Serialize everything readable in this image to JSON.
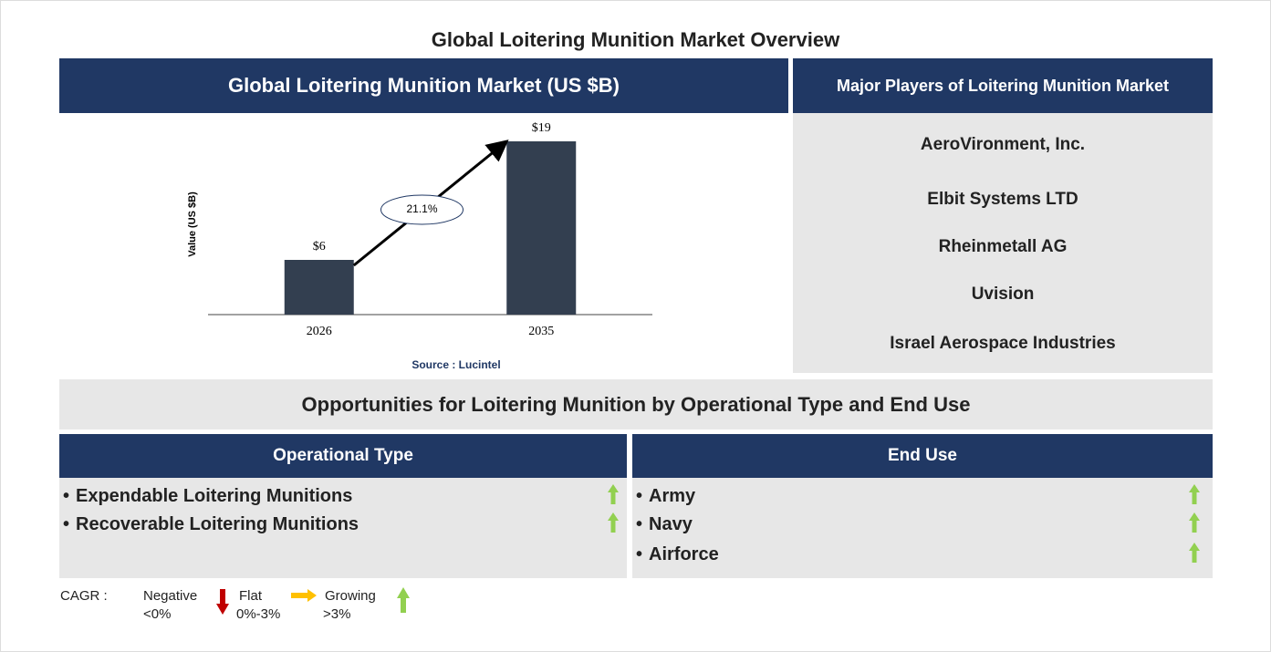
{
  "title": "Global Loitering Munition Market Overview",
  "market_panel": {
    "header": "Global Loitering Munition Market (US $B)",
    "source": "Source : Lucintel"
  },
  "chart_data": {
    "type": "bar",
    "y_label": "Value (US $B)",
    "categories": [
      "2026",
      "2035"
    ],
    "values": [
      6,
      19
    ],
    "value_labels": [
      "$6",
      "$19"
    ],
    "color": "#333f50",
    "annotation": "21.1%"
  },
  "players_panel": {
    "header": "Major Players of Loitering Munition Market",
    "players": [
      "AeroVironment, Inc.",
      "Elbit Systems LTD",
      "Rheinmetall AG",
      "Uvision",
      "Israel Aerospace Industries"
    ]
  },
  "opportunities": {
    "title": "Opportunities for Loitering Munition by Operational Type and End Use",
    "columns": [
      {
        "header": "Operational Type",
        "items": [
          "Expendable Loitering Munitions",
          "Recoverable Loitering Munitions"
        ]
      },
      {
        "header": "End Use",
        "items": [
          "Army",
          "Navy",
          "Airforce"
        ]
      }
    ]
  },
  "legend": {
    "label": "CAGR :",
    "negative": "Negative",
    "negative_range": "<0%",
    "flat": "Flat",
    "flat_range": "0%-3%",
    "growing": "Growing",
    "growing_range": ">3%"
  }
}
